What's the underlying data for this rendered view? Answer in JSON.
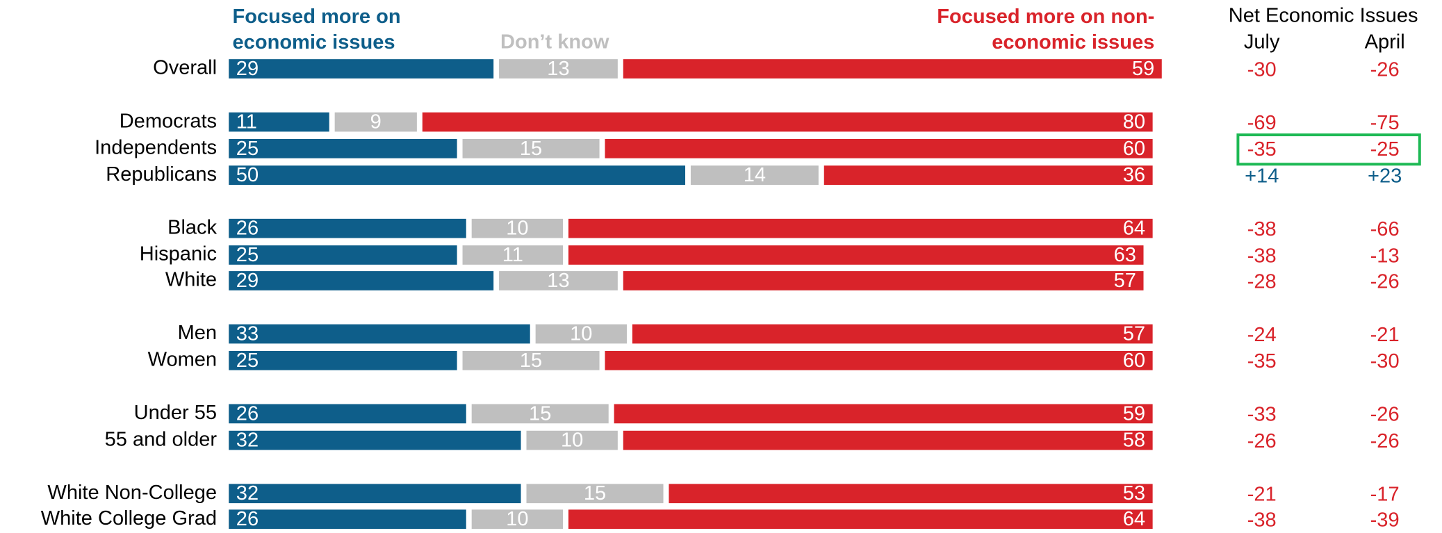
{
  "chart_data": {
    "type": "stacked_bar",
    "categories": [
      "Overall",
      "Democrats",
      "Independents",
      "Republicans",
      "Black",
      "Hispanic",
      "White",
      "Men",
      "Women",
      "Under 55",
      "55 and older",
      "White Non-College",
      "White College Grad"
    ],
    "series": [
      {
        "name": "Focused more on economic issues",
        "color": "#0e5e8a",
        "values": [
          29,
          11,
          25,
          50,
          26,
          25,
          29,
          33,
          25,
          26,
          32,
          32,
          26
        ]
      },
      {
        "name": "Don’t know",
        "color": "#bfbfbf",
        "values": [
          13,
          9,
          15,
          14,
          10,
          11,
          13,
          10,
          15,
          15,
          10,
          15,
          10
        ]
      },
      {
        "name": "Focused more on non-economic issues",
        "color": "#d9232a",
        "values": [
          59,
          80,
          60,
          36,
          64,
          63,
          57,
          57,
          60,
          59,
          58,
          53,
          64
        ]
      }
    ],
    "net": {
      "title": "Net Economic Issues",
      "columns": [
        {
          "name": "July",
          "values": [
            -30,
            -69,
            -35,
            14,
            -38,
            -38,
            -28,
            -24,
            -35,
            -33,
            -26,
            -21,
            -38
          ],
          "value_labels": [
            "-30",
            "-69",
            "-35",
            "+14",
            "-38",
            "-38",
            "-28",
            "-24",
            "-35",
            "-33",
            "-26",
            "-21",
            "-38"
          ]
        },
        {
          "name": "April",
          "values": [
            -26,
            -75,
            -25,
            23,
            -66,
            -13,
            -26,
            -21,
            -30,
            -26,
            -26,
            -17,
            -39
          ],
          "value_labels": [
            "-26",
            "-75",
            "-25",
            "+23",
            "-66",
            "-13",
            "-26",
            "-21",
            "-30",
            "-26",
            "-26",
            "-17",
            "-39"
          ]
        }
      ]
    }
  }
}
